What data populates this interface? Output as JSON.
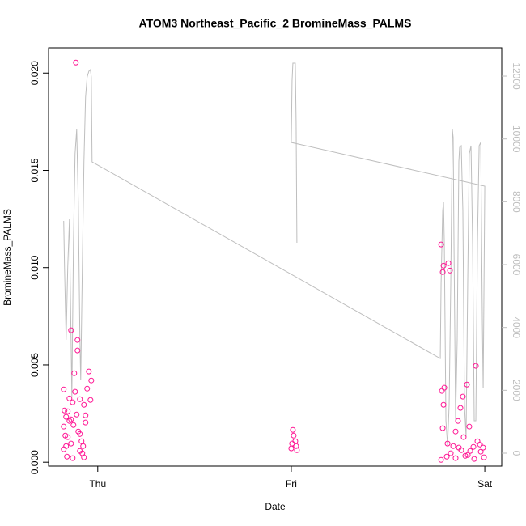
{
  "chart_data": {
    "type": "scatter",
    "title": "ATOM3 Northeast_Pacific_2 BromineMass_PALMS",
    "x_label": "Date",
    "y_label": "BromineMass_PALMS",
    "xlim": [
      -6.1,
      50.1
    ],
    "xticks": [
      {
        "value": 0,
        "label": "Thu"
      },
      {
        "value": 24,
        "label": "Fri"
      },
      {
        "value": 48,
        "label": "Sat"
      }
    ],
    "ylim": [
      -0.0002,
      0.0213
    ],
    "yticks": [
      {
        "value": 0,
        "label": "0.000"
      },
      0.005,
      {
        "value": 0.01,
        "label": "0.010"
      },
      0.015,
      {
        "value": 0.02,
        "label": "0.020"
      }
    ],
    "y2lim": [
      -412,
      12902
    ],
    "y2ticks": [
      0,
      2000,
      4000,
      6000,
      8000,
      10000,
      12000
    ],
    "series": [
      {
        "type": "line",
        "axis": "y2",
        "color": "#bebebe",
        "x": [
          -4.22,
          -4.12,
          -3.92,
          -3.72,
          -3.51,
          -3.41,
          -3.21,
          -3.01,
          -2.81,
          -2.61,
          -2.41,
          -2.21,
          -2.11,
          -1.91,
          -1.71,
          -1.51,
          -1.31,
          -1.1,
          -0.9,
          -0.8,
          -0.7,
          42.48,
          42.58,
          42.78,
          42.88,
          42.98,
          43.18,
          43.38,
          43.58,
          43.78,
          43.98,
          44.08,
          44.18,
          44.38,
          44.58,
          44.78,
          44.88,
          45.08,
          45.28,
          45.48,
          45.68,
          45.88,
          46.08,
          46.29,
          46.49,
          46.69,
          46.89,
          47.09,
          47.3,
          47.5,
          47.7,
          47.8,
          48.0,
          24.0,
          24.1,
          24.2,
          24.5,
          24.6,
          24.7
        ],
        "values": [
          7390,
          5923,
          3605,
          5923,
          7442,
          5408,
          1803,
          6695,
          9528,
          10300,
          7983,
          3605,
          2318,
          5923,
          9270,
          11330,
          11974,
          12154,
          12206,
          11974,
          9270,
          3013,
          5408,
          7725,
          7983,
          6695,
          1030,
          258,
          1545,
          5408,
          10300,
          10043,
          6695,
          1030,
          3605,
          9270,
          9734,
          9785,
          7725,
          1545,
          515,
          5408,
          9528,
          9785,
          6695,
          1030,
          1030,
          6695,
          9785,
          9888,
          4120,
          2060,
          8498,
          9888,
          11845,
          12412,
          12412,
          10558,
          6695
        ]
      },
      {
        "type": "scatter",
        "color": "#ff1493",
        "x": [
          -2.71,
          -3.31,
          -2.51,
          -2.51,
          -2.91,
          -1.1,
          -0.8,
          -4.22,
          -1.31,
          -2.81,
          -3.51,
          -2.21,
          -0.9,
          -3.11,
          -1.71,
          -4.12,
          -3.72,
          -2.61,
          -1.51,
          -3.92,
          -3.31,
          -3.51,
          -3.01,
          -4.22,
          -2.41,
          -1.51,
          -3.72,
          -4.02,
          -2.21,
          -2.01,
          -3.31,
          -1.81,
          -4.22,
          -1.91,
          -3.92,
          -2.21,
          -1.71,
          -3.11,
          -3.82,
          24.2,
          24.3,
          24.5,
          24.1,
          24.6,
          24.7,
          24.0,
          42.58,
          42.88,
          43.48,
          43.68,
          42.78,
          42.98,
          42.68,
          42.88,
          45.79,
          46.89,
          45.28,
          44.98,
          44.68,
          42.78,
          46.08,
          44.38,
          45.38,
          47.09,
          43.38,
          44.08,
          46.59,
          47.8,
          45.08,
          47.5,
          43.78,
          45.89,
          43.28,
          44.38,
          42.58,
          46.69,
          47.9,
          45.58,
          46.19,
          47.4,
          44.78
        ],
        "values": [
          0.02054,
          0.00678,
          0.00628,
          0.00574,
          0.00457,
          0.00466,
          0.0042,
          0.00374,
          0.00378,
          0.00362,
          0.00328,
          0.00324,
          0.0032,
          0.00308,
          0.00295,
          0.00266,
          0.00262,
          0.00245,
          0.00241,
          0.00233,
          0.0022,
          0.00212,
          0.00191,
          0.00183,
          0.00158,
          0.00204,
          0.00129,
          0.00137,
          0.00145,
          0.00108,
          0.00096,
          0.00083,
          0.00067,
          0.00046,
          0.00083,
          0.00058,
          0.00025,
          0.00021,
          0.00029,
          0.00166,
          0.00137,
          0.00108,
          0.00096,
          0.00083,
          0.00062,
          0.00071,
          0.01119,
          0.0101,
          0.01023,
          0.00985,
          0.00977,
          0.00383,
          0.00366,
          0.00295,
          0.00399,
          0.00495,
          0.00337,
          0.00279,
          0.00212,
          0.00175,
          0.00183,
          0.00158,
          0.00129,
          0.00108,
          0.00096,
          0.00083,
          0.00079,
          0.00075,
          0.00062,
          0.00054,
          0.00046,
          0.00037,
          0.00029,
          0.00021,
          0.00012,
          0.00017,
          0.00025,
          0.00033,
          0.00058,
          0.00091,
          0.00075
        ]
      }
    ]
  }
}
